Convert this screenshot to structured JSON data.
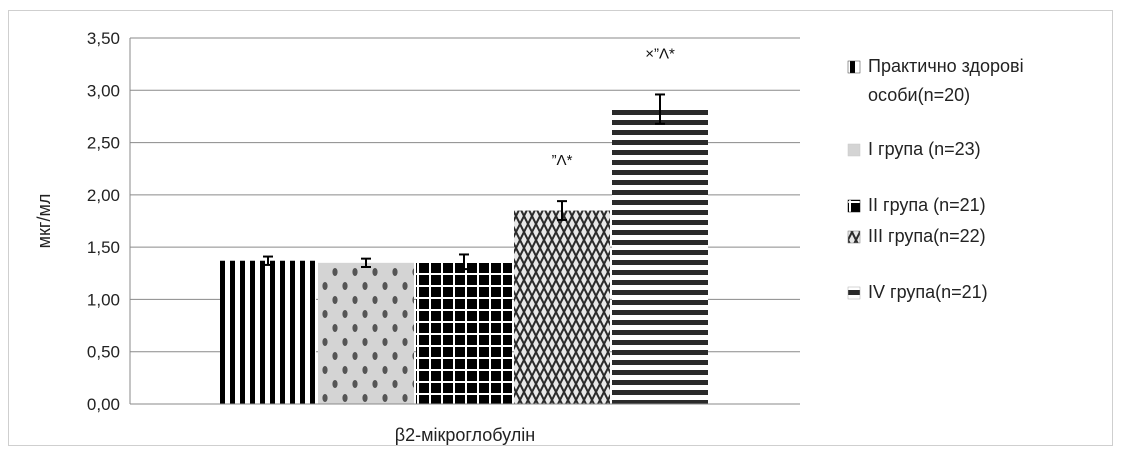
{
  "chart_data": {
    "type": "bar",
    "categories": [
      "β2-мікроглобулін"
    ],
    "series": [
      {
        "name": "Практично здорові особи(n=20)",
        "values": [
          1.37
        ],
        "error": [
          0.04
        ],
        "annotation": "",
        "pattern": "vstripes",
        "swatch_color": "#333333"
      },
      {
        "name": "І група  (n=23)",
        "values": [
          1.35
        ],
        "error": [
          0.04
        ],
        "annotation": "",
        "pattern": "dots",
        "swatch_color": "#c8c8c8"
      },
      {
        "name": "ІІ група  (n=21)",
        "values": [
          1.36
        ],
        "error": [
          0.07
        ],
        "annotation": "",
        "pattern": "grid",
        "swatch_color": "#111111"
      },
      {
        "name": "ІІІ група(n=22)",
        "values": [
          1.85
        ],
        "error": [
          0.09
        ],
        "annotation": "”Λ*",
        "pattern": "zigzag",
        "swatch_color": "#777777"
      },
      {
        "name": "IV група(n=21)",
        "values": [
          2.82
        ],
        "error": [
          0.14
        ],
        "annotation": "×”Λ*",
        "pattern": "hstripes",
        "swatch_color": "#aaaaaa"
      }
    ],
    "ylabel": "мкг/мл",
    "xlabel": "",
    "ylim": [
      0,
      3.5
    ],
    "yticks": [
      "0,00",
      "0,50",
      "1,00",
      "1,50",
      "2,00",
      "2,50",
      "3,00",
      "3,50"
    ],
    "grid": true,
    "legend": "right"
  }
}
